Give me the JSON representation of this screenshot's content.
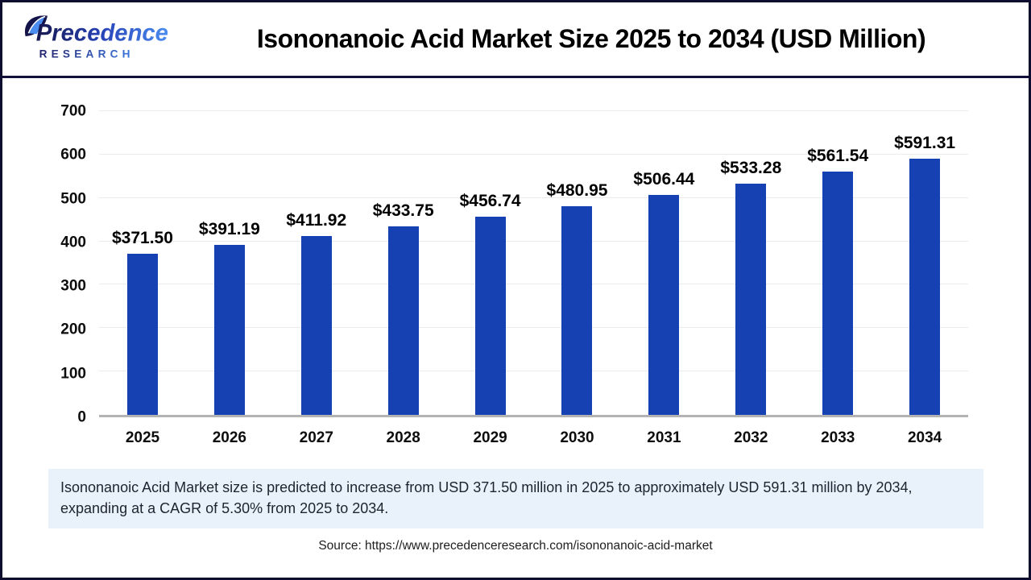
{
  "logo": {
    "line1": "Precedence",
    "line2": "RESEARCH"
  },
  "header": {
    "title": "Isononanoic Acid Market Size 2025 to 2034 (USD Million)"
  },
  "chart_data": {
    "type": "bar",
    "title": "Isononanoic Acid Market Size 2025 to 2034 (USD Million)",
    "categories": [
      "2025",
      "2026",
      "2027",
      "2028",
      "2029",
      "2030",
      "2031",
      "2032",
      "2033",
      "2034"
    ],
    "values": [
      371.5,
      391.19,
      411.92,
      433.75,
      456.74,
      480.95,
      506.44,
      533.28,
      561.54,
      591.31
    ],
    "labels": [
      "$371.50",
      "$391.19",
      "$411.92",
      "$433.75",
      "$456.74",
      "$480.95",
      "$506.44",
      "$533.28",
      "$561.54",
      "$591.31"
    ],
    "xlabel": "",
    "ylabel": "",
    "ylim": [
      0,
      700
    ],
    "yticks": [
      0,
      100,
      200,
      300,
      400,
      500,
      600,
      700
    ],
    "grid": true,
    "legend": false,
    "bar_color": "#1541b3"
  },
  "summary": {
    "text": "Isononanoic Acid Market size is predicted to increase from USD 371.50 million in 2025 to approximately USD 591.31 million by 2034, expanding at a CAGR of 5.30% from 2025 to 2034."
  },
  "source": {
    "text": "Source: https://www.precedenceresearch.com/isononanoic-acid-market"
  },
  "colors": {
    "bar": "#1541b3",
    "summary_bg": "#e9f1fa",
    "border": "#0d0d30",
    "logo_dark": "#16164e",
    "logo_blue": "#4a8cf0"
  }
}
